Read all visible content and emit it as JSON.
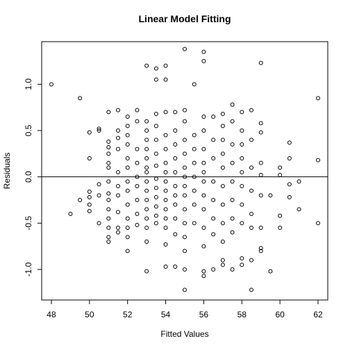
{
  "chart_data": {
    "type": "scatter",
    "title": "Linear Model Fitting",
    "x_label": "Fitted Values",
    "y_label": "Residuals",
    "xlim": [
      47.49,
      62.51
    ],
    "ylim": [
      -1.33,
      1.46
    ],
    "xticks": [
      48,
      50,
      52,
      54,
      56,
      58,
      60,
      62
    ],
    "yticks": [
      {
        "value": -1.0,
        "label": "-1.0"
      },
      {
        "value": -0.5,
        "label": "-0.5"
      },
      {
        "value": 0.0,
        "label": "0.0"
      },
      {
        "value": 0.5,
        "label": "0.5"
      },
      {
        "value": 1.0,
        "label": "1.0"
      }
    ],
    "hline": 0,
    "color": "#000000",
    "x": [
      48,
      49,
      49.5,
      49.5,
      50,
      50,
      50,
      50,
      50,
      50,
      50.5,
      50.5,
      50.5,
      50.5,
      50.5,
      51,
      51,
      51,
      51,
      51,
      51,
      51,
      51,
      51,
      51,
      51,
      51,
      51,
      51,
      51.5,
      51.5,
      51.5,
      51.5,
      51.5,
      51.5,
      51.5,
      51.5,
      51.5,
      51.5,
      52,
      52,
      52,
      52,
      52,
      52,
      52,
      52,
      52,
      52,
      52,
      52,
      52,
      52.5,
      52.5,
      52.5,
      52.5,
      52.5,
      52.5,
      52.5,
      52.5,
      52.5,
      53,
      53,
      53,
      53,
      53,
      53,
      53,
      53,
      53,
      53,
      53,
      53,
      53,
      53,
      53,
      53,
      53.5,
      53.5,
      53.5,
      53.5,
      53.5,
      53.5,
      53.5,
      53.5,
      53.5,
      53.5,
      53.5,
      53.5,
      53.5,
      54,
      54,
      54,
      54,
      54,
      54,
      54,
      54,
      54,
      54,
      54,
      54,
      54,
      54,
      54,
      54.5,
      54.5,
      54.5,
      54.5,
      54.5,
      54.5,
      54.5,
      54.5,
      54.5,
      54.5,
      54.5,
      55,
      55,
      55,
      55,
      55,
      55,
      55,
      55,
      55,
      55,
      55,
      55,
      55,
      55,
      55,
      55.5,
      55.5,
      55.5,
      55.5,
      55.5,
      55.5,
      55.5,
      55.5,
      56,
      56,
      56,
      56,
      56,
      56,
      56,
      56,
      56,
      56,
      56,
      56,
      56,
      56,
      56.5,
      56.5,
      56.5,
      56.5,
      56.5,
      56.5,
      56.5,
      56.5,
      57,
      57,
      57,
      57,
      57,
      57,
      57,
      57,
      57,
      57,
      57,
      57.5,
      57.5,
      57.5,
      57.5,
      57.5,
      57.5,
      57.5,
      57.5,
      57.5,
      58,
      58,
      58,
      58,
      58,
      58,
      58,
      58,
      58,
      58,
      58.5,
      58.5,
      58.5,
      58.5,
      58.5,
      58.5,
      58.5,
      58.5,
      59,
      59,
      59,
      59,
      59,
      59,
      59,
      59,
      59,
      59.5,
      59.5,
      60,
      60,
      60,
      60,
      60.5,
      60.5,
      60.5,
      60.5,
      61,
      61,
      62,
      62,
      62
    ],
    "values": [
      1.0,
      -0.4,
      0.85,
      -0.25,
      0.48,
      0.2,
      -0.16,
      -0.22,
      -0.37,
      -0.3,
      0.5,
      0.52,
      -0.08,
      -0.2,
      -0.5,
      0.7,
      0.38,
      0.32,
      0.25,
      0.15,
      0.1,
      -0.05,
      -0.18,
      -0.25,
      -0.35,
      -0.45,
      -0.55,
      -0.65,
      -0.7,
      0.72,
      0.5,
      0.42,
      0.3,
      0.05,
      -0.1,
      -0.2,
      -0.38,
      -0.55,
      -0.6,
      0.65,
      0.55,
      0.45,
      0.35,
      0.2,
      0.1,
      -0.05,
      -0.15,
      -0.3,
      -0.45,
      -0.55,
      -0.65,
      -0.8,
      0.72,
      0.6,
      0.3,
      0.15,
      0.0,
      -0.1,
      -0.25,
      -0.4,
      -0.52,
      1.2,
      0.6,
      0.5,
      0.4,
      0.3,
      0.2,
      0.1,
      0.05,
      -0.05,
      -0.15,
      -0.25,
      -0.35,
      -0.45,
      -0.55,
      -0.7,
      -1.02,
      1.17,
      1.05,
      0.68,
      0.55,
      0.4,
      0.25,
      0.12,
      -0.02,
      -0.12,
      -0.22,
      -0.32,
      -0.42,
      -0.5,
      1.2,
      1.05,
      0.7,
      0.45,
      0.3,
      0.15,
      0.05,
      -0.05,
      -0.15,
      -0.25,
      -0.35,
      -0.45,
      -0.55,
      -0.73,
      -0.97,
      0.7,
      0.5,
      0.35,
      0.2,
      0.05,
      -0.1,
      -0.2,
      -0.3,
      -0.45,
      -0.62,
      -0.97,
      1.38,
      0.72,
      0.6,
      0.4,
      0.25,
      0.1,
      0.0,
      -0.1,
      -0.2,
      -0.35,
      -0.5,
      -0.65,
      -0.8,
      -1.0,
      -1.22,
      1.0,
      0.45,
      0.3,
      0.15,
      0.0,
      -0.15,
      -0.3,
      -0.5,
      1.35,
      1.25,
      0.65,
      0.5,
      0.3,
      0.15,
      0.05,
      -0.05,
      -0.2,
      -0.35,
      -0.55,
      -0.75,
      -1.02,
      -1.07,
      0.65,
      0.4,
      0.2,
      -0.05,
      -0.25,
      -0.45,
      -0.62,
      -1.0,
      0.68,
      0.55,
      0.4,
      0.25,
      0.1,
      -0.1,
      -0.3,
      -0.5,
      -0.7,
      -0.9,
      -0.95,
      0.78,
      0.6,
      0.35,
      0.15,
      -0.05,
      -0.25,
      -0.45,
      -0.6,
      -1.0,
      0.7,
      0.5,
      0.35,
      0.2,
      0.05,
      -0.1,
      -0.3,
      -0.5,
      -0.88,
      -0.95,
      0.72,
      0.4,
      0.1,
      -0.15,
      -0.4,
      -0.55,
      -1.22,
      -0.9,
      1.23,
      0.58,
      0.48,
      0.15,
      0.02,
      -0.2,
      -0.55,
      -0.77,
      -0.8,
      -0.2,
      -1.02,
      0.1,
      0.02,
      -0.42,
      -0.55,
      0.37,
      0.2,
      -0.08,
      -0.22,
      -0.05,
      -0.35,
      0.85,
      0.18,
      -0.5
    ]
  }
}
